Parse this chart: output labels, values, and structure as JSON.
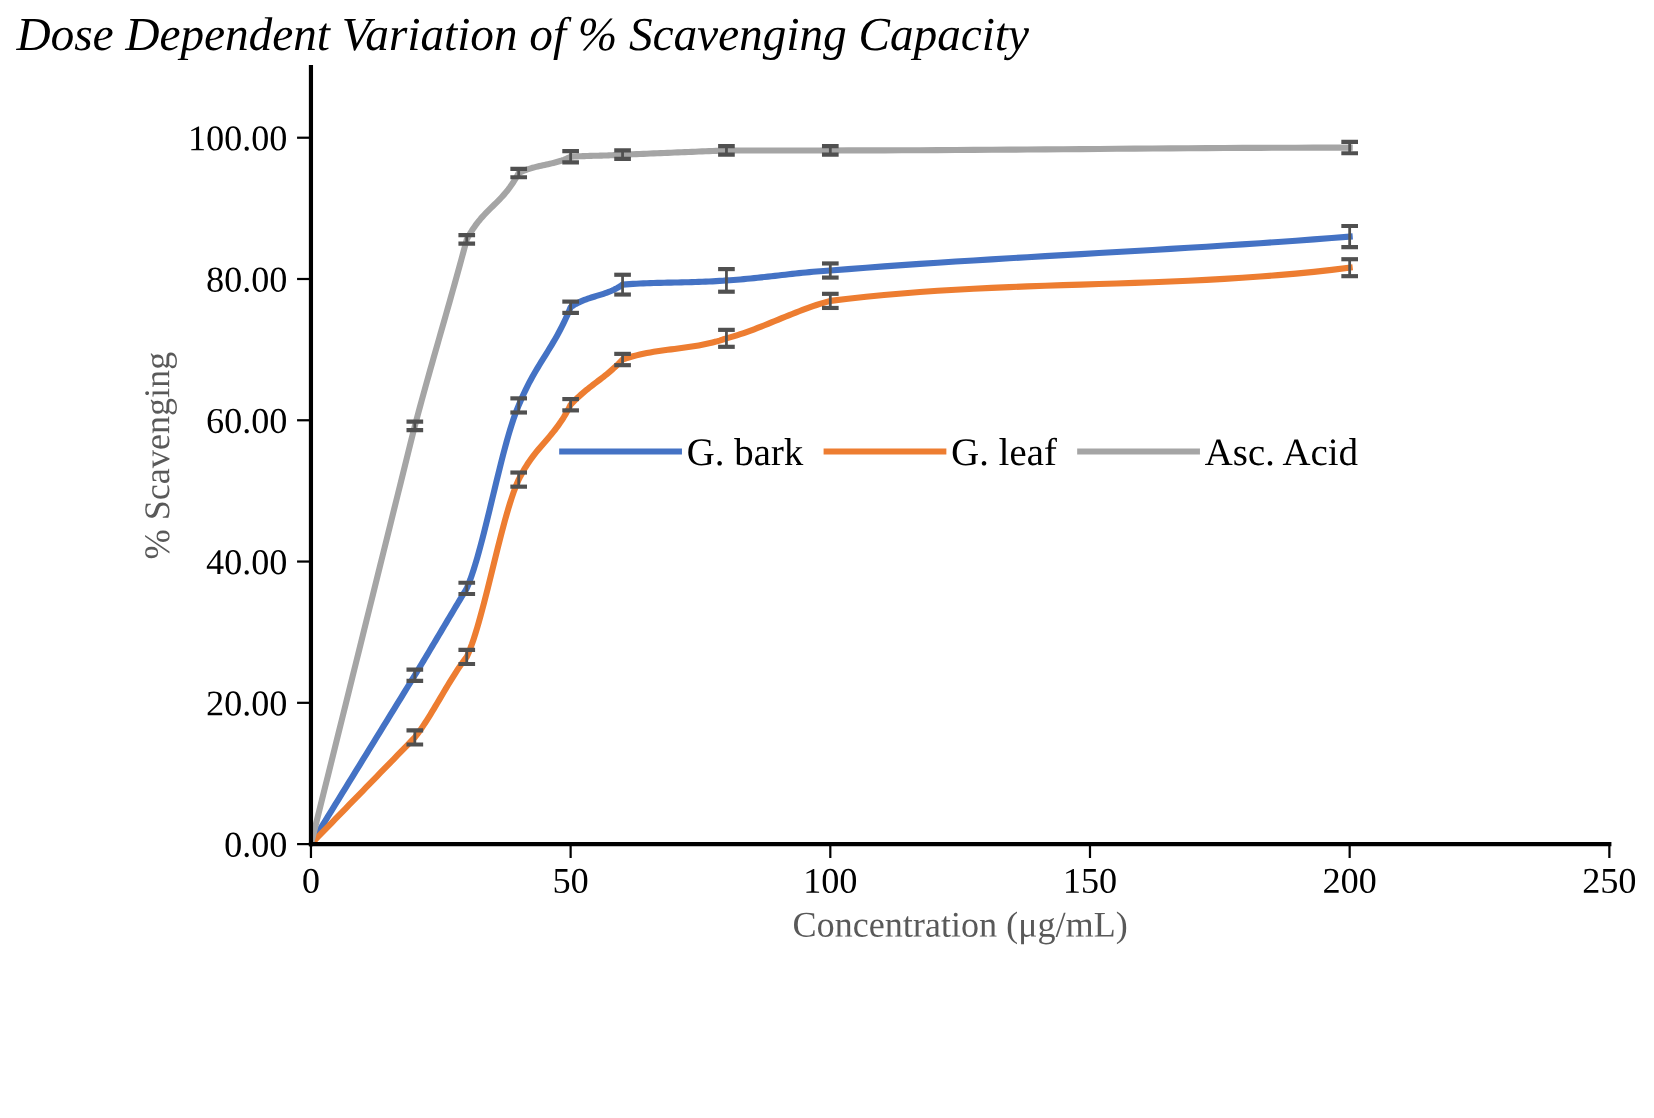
{
  "chart_data": {
    "type": "line",
    "title": "Dose Dependent Variation of % Scavenging Capacity",
    "xlabel": "Concentration (μg/mL)",
    "ylabel": "% Scavenging",
    "x": [
      0,
      20,
      30,
      40,
      50,
      60,
      80,
      100,
      200
    ],
    "series": [
      {
        "name": "G. bark",
        "color": "#4472c4",
        "values": [
          0,
          23.9,
          36.2,
          62.1,
          76,
          79.2,
          79.8,
          81.2,
          86
        ],
        "errors": [
          null,
          0.8,
          0.8,
          1,
          0.8,
          1.4,
          1.6,
          1,
          1.5
        ]
      },
      {
        "name": "G. leaf",
        "color": "#ed7d31",
        "values": [
          0,
          15.1,
          26.5,
          51.6,
          62.2,
          68.6,
          71.6,
          76.9,
          81.6
        ],
        "errors": [
          null,
          1,
          1,
          1,
          0.8,
          0.8,
          1.2,
          1,
          1.2
        ]
      },
      {
        "name": "Asc. Acid",
        "color": "#a5a5a5",
        "values": [
          0,
          59.2,
          85.6,
          95,
          97.3,
          97.6,
          98.2,
          98.2,
          98.6
        ],
        "errors": [
          null,
          0.6,
          0.6,
          0.6,
          0.8,
          0.6,
          0.6,
          0.6,
          0.8
        ]
      }
    ],
    "xlim": [
      0,
      250
    ],
    "xticks": [
      0,
      50,
      100,
      150,
      200,
      250
    ],
    "ylim": [
      0,
      110
    ],
    "yticks": [
      {
        "value": 0,
        "label": "0.00"
      },
      {
        "value": 20,
        "label": "20.00"
      },
      {
        "value": 40,
        "label": "40.00"
      },
      {
        "value": 60,
        "label": "60.00"
      },
      {
        "value": 80,
        "label": "80.00"
      },
      {
        "value": 100,
        "label": "100.00"
      }
    ],
    "grid": false,
    "legend": "center",
    "marker": "none",
    "line_style": "solid"
  }
}
